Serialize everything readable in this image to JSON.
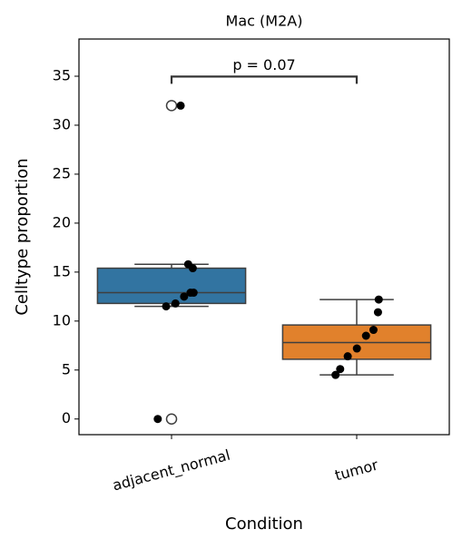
{
  "chart_data": {
    "type": "box",
    "title": "Mac (M2A)",
    "xlabel": "Condition",
    "ylabel": "Celltype proportion",
    "categories": [
      "adjacent_normal",
      "tumor"
    ],
    "colors": [
      "#3274a1",
      "#e1812c"
    ],
    "boxes": [
      {
        "whislo": 11.5,
        "q1": 11.8,
        "med": 12.9,
        "q3": 15.4,
        "whishi": 15.8,
        "fliers": [
          32.0,
          0.0
        ]
      },
      {
        "whislo": 4.5,
        "q1": 6.1,
        "med": 7.8,
        "q3": 9.6,
        "whishi": 12.2,
        "fliers": []
      }
    ],
    "points": [
      [
        32.0,
        15.8,
        15.4,
        12.9,
        12.9,
        12.5,
        11.8,
        11.5,
        0.0
      ],
      [
        12.2,
        10.9,
        9.1,
        8.5,
        7.2,
        6.4,
        5.1,
        4.5
      ]
    ],
    "annotation": "p = 0.07",
    "ylim": [
      -1.6,
      38.8
    ],
    "yticks": [
      0,
      5,
      10,
      15,
      20,
      25,
      30,
      35
    ]
  }
}
